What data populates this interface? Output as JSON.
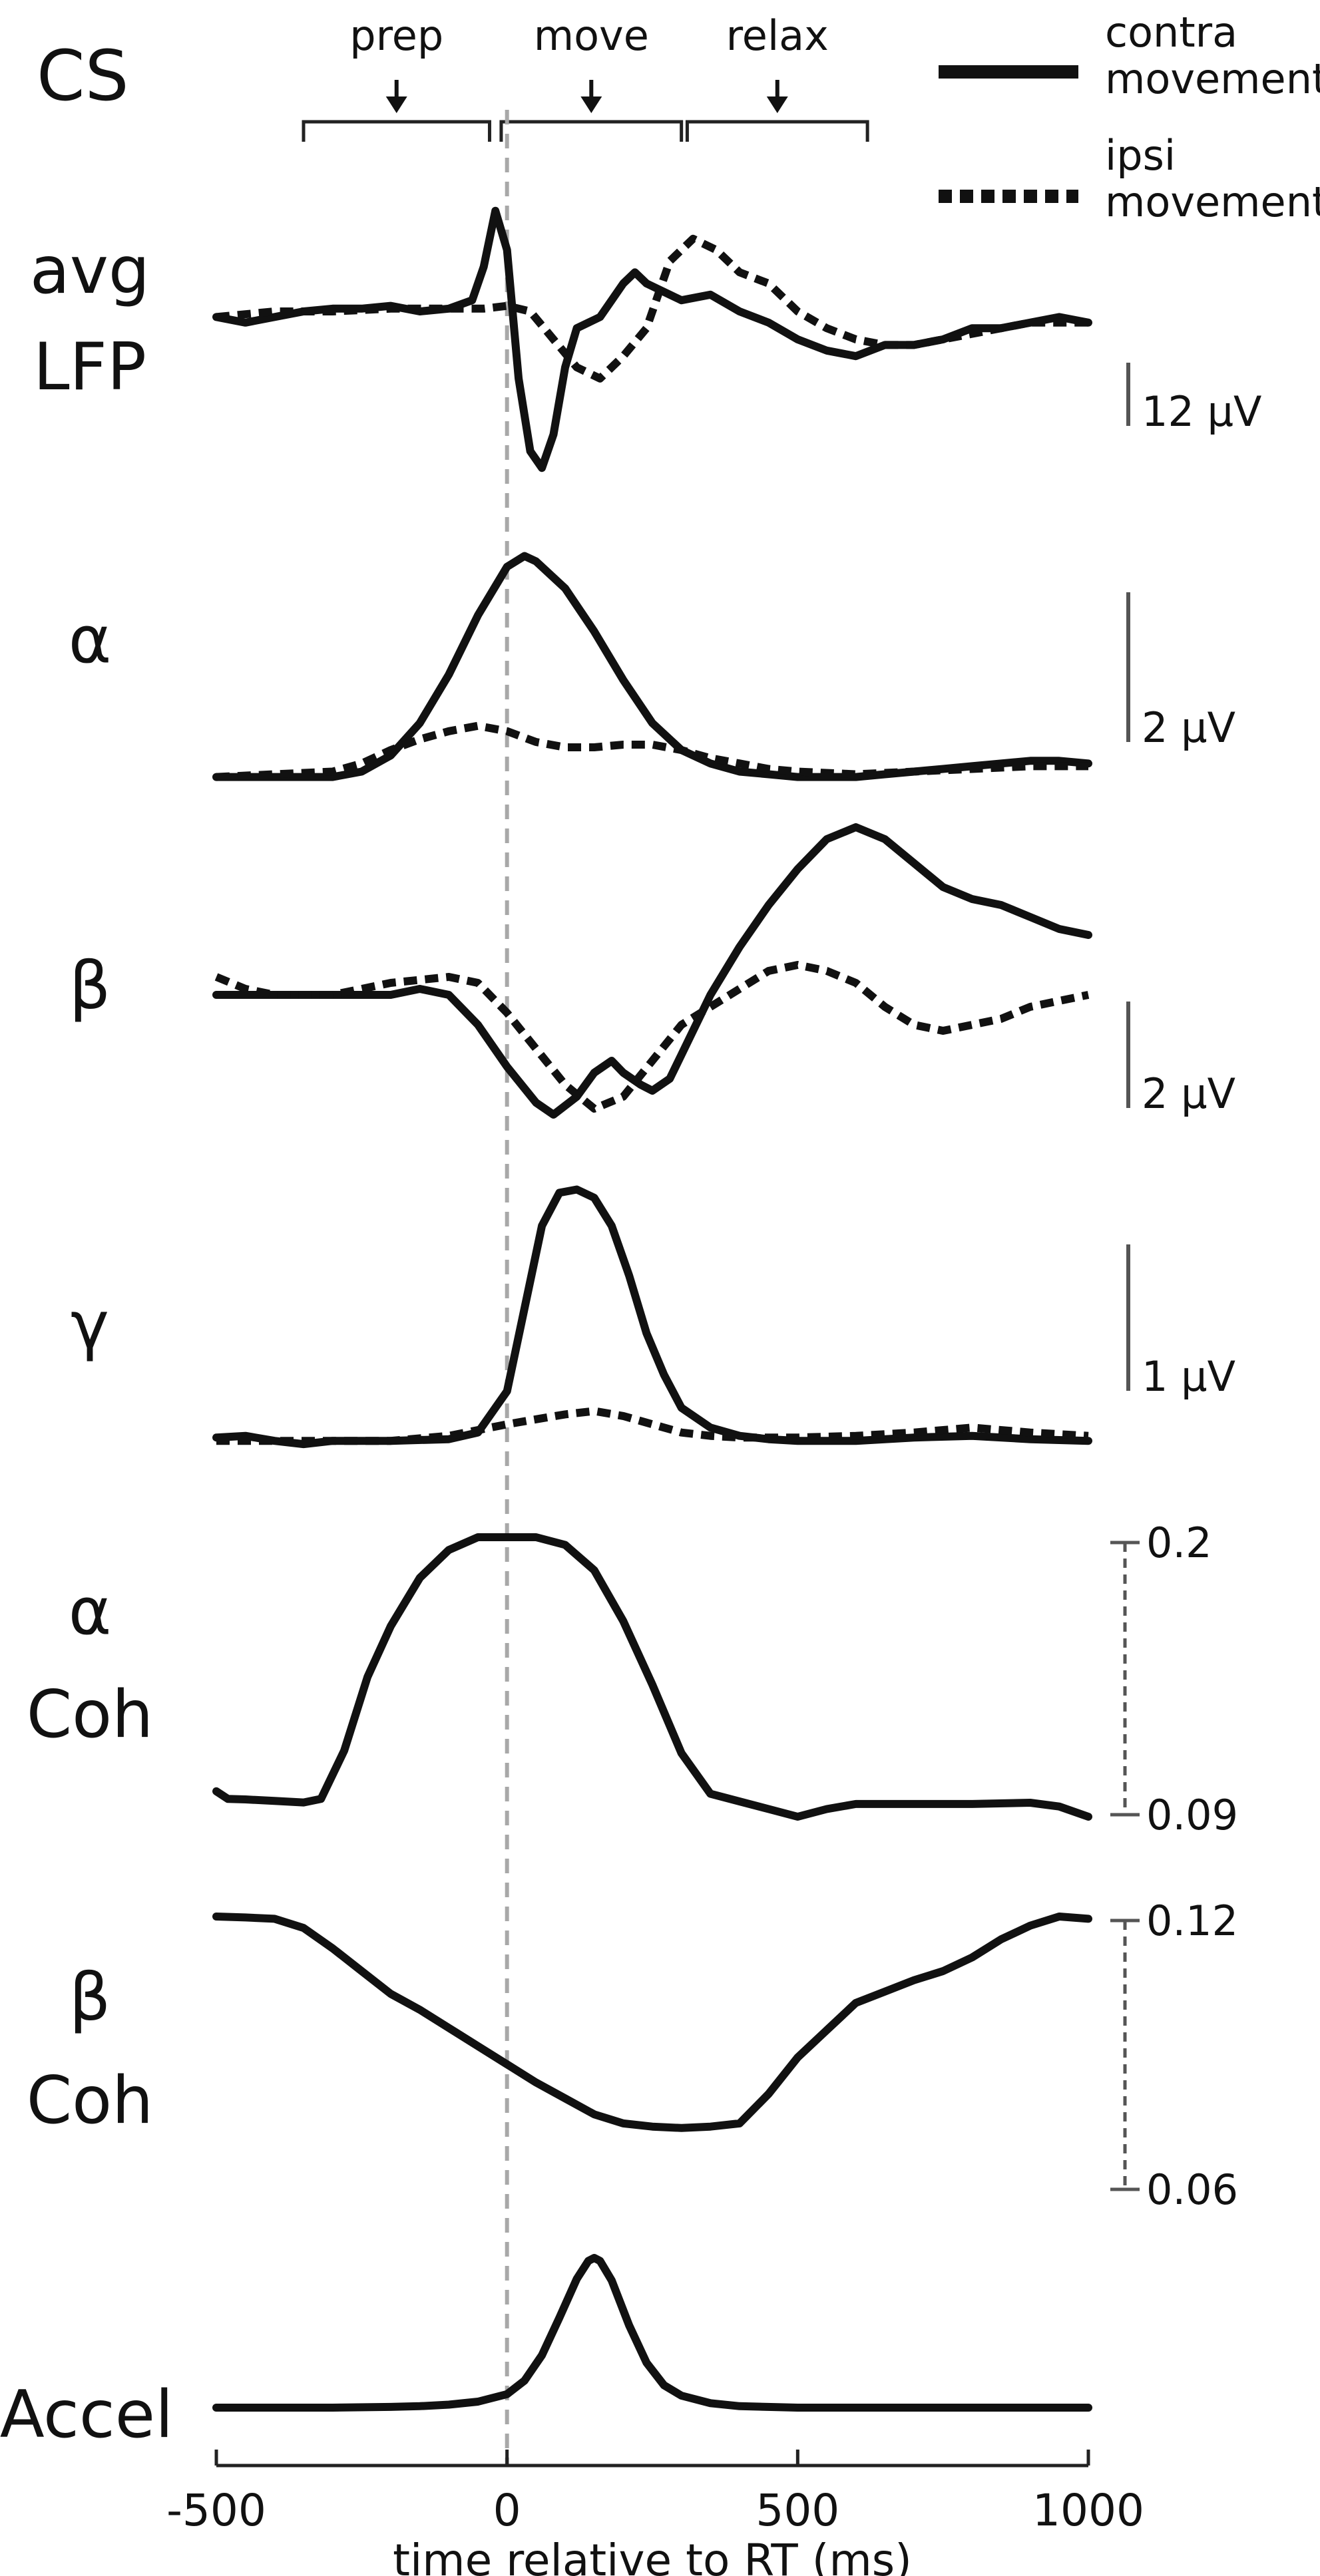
{
  "figure": {
    "header_label": "CS",
    "phases": [
      {
        "label": "prep",
        "range": [
          -350,
          -30
        ]
      },
      {
        "label": "move",
        "range": [
          -10,
          300
        ]
      },
      {
        "label": "relax",
        "range": [
          310,
          620
        ]
      }
    ],
    "legend": [
      {
        "line1": "contra",
        "line2": "movement",
        "style": "solid"
      },
      {
        "line1": "ipsi",
        "line2": "movement",
        "style": "dotted"
      }
    ],
    "event_marker_x": 0,
    "xlabel": "time relative to RT (ms)",
    "xticks": [
      "-500",
      "0",
      "500",
      "1000"
    ],
    "colors": {
      "trace": "#111111",
      "marker": "#a8a8a8",
      "scale": "#555555"
    }
  },
  "chart_data": [
    {
      "type": "line",
      "panel": "lfp",
      "label_lines": [
        "avg",
        "LFP"
      ],
      "xlim": [
        -500,
        1000
      ],
      "ylim": [
        -30,
        20
      ],
      "scale_bar": {
        "label": "12 μV",
        "value": 12,
        "style": "solid"
      },
      "series": [
        {
          "name": "contra movement",
          "style": "solid",
          "x": [
            -500,
            -450,
            -400,
            -350,
            -300,
            -250,
            -200,
            -150,
            -100,
            -60,
            -40,
            -20,
            0,
            20,
            40,
            60,
            80,
            100,
            120,
            140,
            160,
            180,
            200,
            220,
            240,
            260,
            280,
            300,
            350,
            400,
            450,
            500,
            550,
            600,
            650,
            700,
            750,
            800,
            850,
            900,
            950,
            1000
          ],
          "y": [
            -1,
            -2,
            -1,
            0,
            0.5,
            0.5,
            1,
            0,
            0.5,
            2,
            8,
            18,
            11,
            -12,
            -25,
            -28,
            -22,
            -10,
            -3,
            -2,
            -1,
            2,
            5,
            7,
            5,
            4,
            3,
            2,
            3,
            0,
            -2,
            -5,
            -7,
            -8,
            -6,
            -6,
            -5,
            -3,
            -3,
            -2,
            -1,
            -2
          ]
        },
        {
          "name": "ipsi movement",
          "style": "dotted",
          "x": [
            -500,
            -400,
            -300,
            -200,
            -100,
            -40,
            0,
            40,
            80,
            120,
            160,
            200,
            240,
            280,
            320,
            360,
            400,
            450,
            500,
            550,
            600,
            650,
            700,
            750,
            800,
            850,
            900,
            950,
            1000
          ],
          "y": [
            -1,
            0,
            0,
            0.5,
            0.5,
            0.5,
            1,
            0,
            -5,
            -10,
            -12,
            -8,
            -3,
            9,
            13,
            11,
            7,
            5,
            0,
            -3,
            -5,
            -6,
            -6,
            -5,
            -4,
            -3,
            -2,
            -2,
            -2
          ]
        }
      ]
    },
    {
      "type": "line",
      "panel": "alpha",
      "label_lines": [
        "α"
      ],
      "xlim": [
        -500,
        1000
      ],
      "ylim": [
        -0.4,
        4.6
      ],
      "scale_bar": {
        "label": "2 μV",
        "value": 2,
        "style": "solid"
      },
      "series": [
        {
          "name": "contra movement",
          "style": "solid",
          "x": [
            -500,
            -400,
            -300,
            -250,
            -200,
            -150,
            -100,
            -50,
            0,
            30,
            50,
            100,
            150,
            200,
            250,
            300,
            350,
            400,
            450,
            500,
            550,
            600,
            650,
            700,
            750,
            800,
            850,
            900,
            950,
            1000
          ],
          "y": [
            0,
            0,
            0,
            0.1,
            0.4,
            1.0,
            1.9,
            3.0,
            3.9,
            4.1,
            4.0,
            3.5,
            2.7,
            1.8,
            1.0,
            0.5,
            0.25,
            0.1,
            0.05,
            0,
            0,
            0,
            0.05,
            0.1,
            0.15,
            0.2,
            0.25,
            0.3,
            0.3,
            0.25
          ]
        },
        {
          "name": "ipsi movement",
          "style": "dotted",
          "x": [
            -500,
            -400,
            -300,
            -250,
            -200,
            -150,
            -100,
            -50,
            0,
            50,
            100,
            150,
            200,
            250,
            300,
            350,
            400,
            450,
            500,
            600,
            700,
            800,
            900,
            1000
          ],
          "y": [
            0,
            0.05,
            0.1,
            0.25,
            0.5,
            0.7,
            0.85,
            0.95,
            0.85,
            0.65,
            0.55,
            0.55,
            0.6,
            0.6,
            0.5,
            0.35,
            0.25,
            0.15,
            0.1,
            0.05,
            0.1,
            0.15,
            0.2,
            0.2
          ]
        }
      ]
    },
    {
      "type": "line",
      "panel": "beta",
      "label_lines": [
        "β"
      ],
      "xlim": [
        -500,
        1000
      ],
      "ylim": [
        -2.5,
        2.5
      ],
      "scale_bar": {
        "label": "2 μV",
        "value": 2,
        "style": "solid"
      },
      "series": [
        {
          "name": "contra movement",
          "style": "solid",
          "x": [
            -500,
            -400,
            -300,
            -200,
            -150,
            -100,
            -50,
            0,
            50,
            80,
            120,
            150,
            180,
            200,
            230,
            250,
            280,
            300,
            350,
            400,
            450,
            500,
            550,
            600,
            650,
            700,
            750,
            800,
            850,
            900,
            950,
            1000
          ],
          "y": [
            0,
            0,
            0,
            0,
            0.1,
            0,
            -0.5,
            -1.2,
            -1.8,
            -2.0,
            -1.7,
            -1.3,
            -1.1,
            -1.3,
            -1.5,
            -1.6,
            -1.4,
            -1.0,
            0,
            0.8,
            1.5,
            2.1,
            2.6,
            2.8,
            2.6,
            2.2,
            1.8,
            1.6,
            1.5,
            1.3,
            1.1,
            1.0
          ]
        },
        {
          "name": "ipsi movement",
          "style": "dotted",
          "x": [
            -500,
            -450,
            -400,
            -300,
            -200,
            -100,
            -50,
            0,
            50,
            100,
            150,
            200,
            250,
            300,
            350,
            400,
            450,
            500,
            550,
            600,
            650,
            700,
            750,
            800,
            850,
            900,
            950,
            1000
          ],
          "y": [
            0.3,
            0.1,
            0,
            0,
            0.2,
            0.3,
            0.2,
            -0.3,
            -0.9,
            -1.5,
            -1.9,
            -1.7,
            -1.1,
            -0.5,
            -0.2,
            0.1,
            0.4,
            0.5,
            0.4,
            0.2,
            -0.2,
            -0.5,
            -0.6,
            -0.5,
            -0.4,
            -0.2,
            -0.1,
            0
          ]
        }
      ]
    },
    {
      "type": "line",
      "panel": "gamma",
      "label_lines": [
        "γ"
      ],
      "xlim": [
        -500,
        1000
      ],
      "ylim": [
        -0.1,
        1.55
      ],
      "scale_bar": {
        "label": "1 μV",
        "value": 1,
        "style": "solid"
      },
      "series": [
        {
          "name": "contra movement",
          "style": "solid",
          "x": [
            -500,
            -450,
            -400,
            -350,
            -300,
            -200,
            -100,
            -50,
            0,
            30,
            60,
            90,
            120,
            150,
            180,
            210,
            240,
            270,
            300,
            350,
            400,
            450,
            500,
            600,
            700,
            800,
            900,
            1000
          ],
          "y": [
            0.02,
            0.03,
            0,
            -0.02,
            0,
            0,
            0.01,
            0.05,
            0.3,
            0.8,
            1.3,
            1.5,
            1.52,
            1.47,
            1.3,
            1.0,
            0.65,
            0.4,
            0.2,
            0.08,
            0.03,
            0.01,
            0,
            0,
            0.02,
            0.03,
            0.01,
            0
          ]
        },
        {
          "name": "ipsi movement",
          "style": "dotted",
          "x": [
            -500,
            -400,
            -300,
            -200,
            -100,
            0,
            50,
            100,
            150,
            200,
            250,
            300,
            350,
            400,
            500,
            600,
            700,
            800,
            900,
            1000
          ],
          "y": [
            0,
            0,
            0,
            0,
            0.03,
            0.1,
            0.13,
            0.16,
            0.18,
            0.15,
            0.1,
            0.05,
            0.03,
            0.02,
            0.02,
            0.03,
            0.05,
            0.08,
            0.05,
            0.03
          ]
        }
      ]
    },
    {
      "type": "line",
      "panel": "alpha-coh",
      "label_lines": [
        "α",
        "Coh"
      ],
      "xlim": [
        -500,
        1000
      ],
      "ylim": [
        0.09,
        0.2
      ],
      "scale_bar": {
        "tick_labels": [
          "0.2",
          "0.09"
        ],
        "style": "dashed"
      },
      "series": [
        {
          "name": "α coherence",
          "style": "solid",
          "x": [
            -500,
            -480,
            -450,
            -400,
            -350,
            -320,
            -280,
            -240,
            -200,
            -150,
            -100,
            -50,
            0,
            50,
            100,
            150,
            200,
            250,
            300,
            350,
            400,
            450,
            500,
            550,
            600,
            700,
            800,
            900,
            950,
            1000
          ],
          "y": [
            0.1,
            0.097,
            0.0968,
            0.0962,
            0.0956,
            0.097,
            0.116,
            0.145,
            0.165,
            0.184,
            0.195,
            0.2,
            0.2,
            0.2,
            0.197,
            0.187,
            0.167,
            0.142,
            0.115,
            0.099,
            0.096,
            0.093,
            0.09,
            0.093,
            0.095,
            0.095,
            0.095,
            0.0955,
            0.094,
            0.09
          ]
        }
      ]
    },
    {
      "type": "line",
      "panel": "beta-coh",
      "label_lines": [
        "β",
        "Coh"
      ],
      "xlim": [
        -500,
        1000
      ],
      "ylim": [
        0.06,
        0.12
      ],
      "scale_bar": {
        "tick_labels": [
          "0.12",
          "0.06"
        ],
        "style": "dashed"
      },
      "series": [
        {
          "name": "β coherence",
          "style": "solid",
          "x": [
            -500,
            -450,
            -400,
            -350,
            -300,
            -250,
            -200,
            -150,
            -100,
            -50,
            0,
            50,
            100,
            150,
            200,
            250,
            300,
            350,
            400,
            450,
            500,
            550,
            600,
            650,
            700,
            750,
            800,
            850,
            900,
            950,
            1000
          ],
          "y": [
            0.12,
            0.1198,
            0.1195,
            0.1175,
            0.113,
            0.108,
            0.103,
            0.0995,
            0.0955,
            0.0915,
            0.0875,
            0.0835,
            0.08,
            0.0765,
            0.0745,
            0.0738,
            0.0735,
            0.0738,
            0.0745,
            0.081,
            0.089,
            0.095,
            0.101,
            0.1035,
            0.106,
            0.108,
            0.111,
            0.115,
            0.118,
            0.12,
            0.1195
          ]
        }
      ]
    },
    {
      "type": "line",
      "panel": "accel",
      "label_lines": [
        "Accel"
      ],
      "xlim": [
        -500,
        1000
      ],
      "ylim": [
        0,
        1
      ],
      "series": [
        {
          "name": "acceleration",
          "style": "solid",
          "x": [
            -500,
            -300,
            -200,
            -150,
            -100,
            -50,
            0,
            30,
            60,
            90,
            120,
            140,
            150,
            160,
            180,
            210,
            240,
            270,
            300,
            350,
            400,
            500,
            600,
            700,
            800,
            900,
            1000
          ],
          "y": [
            0,
            0,
            0.005,
            0.01,
            0.02,
            0.04,
            0.09,
            0.18,
            0.35,
            0.6,
            0.86,
            0.98,
            1.0,
            0.98,
            0.85,
            0.55,
            0.3,
            0.15,
            0.08,
            0.03,
            0.01,
            0,
            0,
            0,
            0,
            0,
            0
          ]
        }
      ]
    }
  ]
}
